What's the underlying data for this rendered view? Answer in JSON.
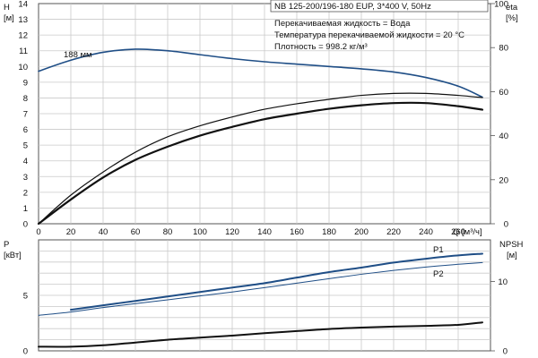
{
  "header": {
    "pump_model": "NB 125-200/196-180 EUP, 3*400 V, 50Hz",
    "info_lines": [
      "Перекачиваемая жидкость = Вода",
      "Температура перекачиваемой жидкости = 20 °C",
      "Плотность = 998.2 кг/м³"
    ]
  },
  "chart_data": [
    {
      "type": "line",
      "panel": "top",
      "xlabel": "Q [м³/ч]",
      "x_ticks": [
        "0",
        "20",
        "40",
        "60",
        "80",
        "100",
        "120",
        "140",
        "160",
        "180",
        "200",
        "220",
        "240",
        "260"
      ],
      "xlim": [
        0,
        280
      ],
      "left_axis": {
        "label_top": "H",
        "label_unit": "[м]",
        "ylim": [
          0,
          14
        ],
        "ticks": [
          "0",
          "1",
          "2",
          "3",
          "4",
          "5",
          "6",
          "7",
          "8",
          "9",
          "10",
          "11",
          "12",
          "13",
          "14"
        ]
      },
      "right_axis": {
        "label_top": "eta",
        "label_unit": "[%]",
        "ylim": [
          0,
          100
        ],
        "ticks": [
          "0",
          "20",
          "40",
          "60",
          "80",
          "100"
        ]
      },
      "grid": true,
      "series": [
        {
          "name": "188 мм",
          "axis": "left",
          "color": "#1f4e86",
          "x": [
            0,
            20,
            40,
            60,
            80,
            100,
            120,
            140,
            160,
            180,
            200,
            220,
            240,
            260,
            275
          ],
          "y": [
            9.7,
            10.4,
            10.9,
            11.1,
            11.0,
            10.75,
            10.5,
            10.3,
            10.15,
            10.0,
            9.85,
            9.65,
            9.3,
            8.75,
            8.05
          ]
        },
        {
          "axis": "right",
          "color": "#111111",
          "width": 1.2,
          "x": [
            0,
            20,
            40,
            60,
            80,
            100,
            120,
            140,
            160,
            180,
            200,
            220,
            240,
            260,
            275
          ],
          "y": [
            0,
            13,
            23.5,
            32.5,
            39.5,
            44.5,
            48.5,
            52,
            54.5,
            56.5,
            58.3,
            59.2,
            59.2,
            58.3,
            57.3
          ]
        },
        {
          "axis": "right",
          "color": "#111111",
          "width": 2.2,
          "x": [
            0,
            20,
            40,
            60,
            80,
            100,
            120,
            140,
            160,
            180,
            200,
            220,
            240,
            260,
            275
          ],
          "y": [
            0,
            11,
            21,
            29,
            35,
            40,
            44,
            47.5,
            50,
            52.2,
            53.8,
            54.8,
            54.8,
            53.4,
            51.8
          ]
        }
      ]
    },
    {
      "type": "line",
      "panel": "bottom",
      "xlim": [
        0,
        280
      ],
      "left_axis": {
        "label_top": "P",
        "label_unit": "[кВт]",
        "ylim": [
          0,
          10
        ],
        "ticks": [
          "0",
          "5"
        ]
      },
      "right_axis": {
        "label_top": "NPSH",
        "label_unit": "[м]",
        "ylim": [
          0,
          16
        ],
        "ticks": [
          "0",
          "10"
        ]
      },
      "grid": true,
      "series": [
        {
          "name": "P1",
          "axis": "left",
          "color": "#1f4e86",
          "width": 2,
          "x": [
            20,
            40,
            60,
            80,
            100,
            120,
            140,
            160,
            180,
            200,
            220,
            240,
            260,
            275
          ],
          "y": [
            3.7,
            4.1,
            4.5,
            4.9,
            5.3,
            5.7,
            6.1,
            6.6,
            7.1,
            7.5,
            7.95,
            8.3,
            8.6,
            8.75
          ]
        },
        {
          "name": "P2",
          "axis": "left",
          "color": "#1f4e86",
          "width": 1,
          "x": [
            0,
            20,
            40,
            60,
            80,
            100,
            120,
            140,
            160,
            180,
            200,
            220,
            240,
            260,
            275
          ],
          "y": [
            3.2,
            3.5,
            3.9,
            4.25,
            4.6,
            4.95,
            5.3,
            5.7,
            6.1,
            6.5,
            6.9,
            7.25,
            7.55,
            7.8,
            7.95
          ]
        },
        {
          "axis": "right",
          "color": "#111111",
          "width": 2,
          "x": [
            0,
            20,
            40,
            60,
            80,
            100,
            120,
            140,
            160,
            180,
            200,
            220,
            240,
            260,
            275
          ],
          "y": [
            0.6,
            0.6,
            0.8,
            1.2,
            1.6,
            1.9,
            2.2,
            2.55,
            2.85,
            3.15,
            3.35,
            3.5,
            3.6,
            3.75,
            4.1
          ]
        }
      ]
    }
  ]
}
